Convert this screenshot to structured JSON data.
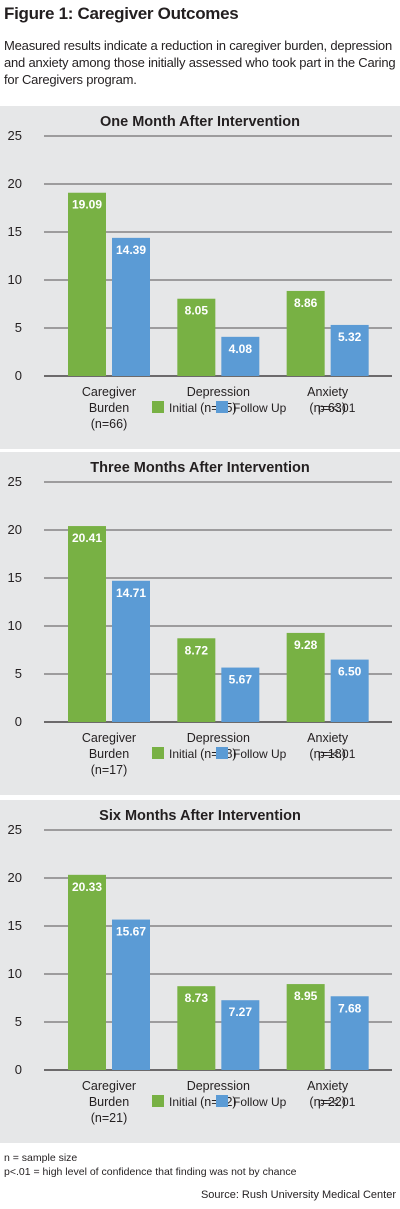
{
  "figure": {
    "title": "Figure 1: Caregiver Outcomes",
    "subtitle": "Measured results indicate a reduction in caregiver burden, depression and anxiety among those initially assessed who took part in the Caring for Caregivers program."
  },
  "colors": {
    "initial": "#78b144",
    "follow_up": "#5b9bd5",
    "panel_bg": "#e6e7e8",
    "grid": "#231f20"
  },
  "chart_data": [
    {
      "type": "bar",
      "title": "One Month After Intervention",
      "categories": [
        [
          "Caregiver",
          "Burden",
          "(n=66)"
        ],
        [
          "Depression",
          "(n=65)"
        ],
        [
          "Anxiety",
          "(n=63)"
        ]
      ],
      "series": [
        {
          "name": "Initial",
          "values": [
            19.09,
            8.05,
            8.86
          ],
          "labels": [
            "19.09",
            "8.05",
            "8.86"
          ]
        },
        {
          "name": "Follow Up",
          "values": [
            14.39,
            4.08,
            5.32
          ],
          "labels": [
            "14.39",
            "4.08",
            "5.32"
          ]
        }
      ],
      "yticks": [
        "0",
        "5",
        "10",
        "15",
        "20",
        "25"
      ],
      "ylim": [
        0,
        25
      ],
      "grid": true,
      "legend": "bottom",
      "note": "p=<.01"
    },
    {
      "type": "bar",
      "title": "Three Months After Intervention",
      "categories": [
        [
          "Caregiver",
          "Burden",
          "(n=17)"
        ],
        [
          "Depression",
          "(n=18)"
        ],
        [
          "Anxiety",
          "(n=18)"
        ]
      ],
      "series": [
        {
          "name": "Initial",
          "values": [
            20.41,
            8.72,
            9.28
          ],
          "labels": [
            "20.41",
            "8.72",
            "9.28"
          ]
        },
        {
          "name": "Follow Up",
          "values": [
            14.71,
            5.67,
            6.5
          ],
          "labels": [
            "14.71",
            "5.67",
            "6.50"
          ]
        }
      ],
      "yticks": [
        "0",
        "5",
        "10",
        "15",
        "20",
        "25"
      ],
      "ylim": [
        0,
        25
      ],
      "grid": true,
      "legend": "bottom",
      "note": "p=<.01"
    },
    {
      "type": "bar",
      "title": "Six Months After Intervention",
      "categories": [
        [
          "Caregiver",
          "Burden",
          "(n=21)"
        ],
        [
          "Depression",
          "(n=22)"
        ],
        [
          "Anxiety",
          "(n=22)"
        ]
      ],
      "series": [
        {
          "name": "Initial",
          "values": [
            20.33,
            8.73,
            8.95
          ],
          "labels": [
            "20.33",
            "8.73",
            "8.95"
          ]
        },
        {
          "name": "Follow Up",
          "values": [
            15.67,
            7.27,
            7.68
          ],
          "labels": [
            "15.67",
            "7.27",
            "7.68"
          ]
        }
      ],
      "yticks": [
        "0",
        "5",
        "10",
        "15",
        "20",
        "25"
      ],
      "ylim": [
        0,
        25
      ],
      "grid": true,
      "legend": "bottom",
      "note": "p=<.01"
    }
  ],
  "footnotes": {
    "line1": "n = sample size",
    "line2": "p<.01 = high level of confidence that finding was not by chance"
  },
  "source": "Source: Rush University Medical Center"
}
